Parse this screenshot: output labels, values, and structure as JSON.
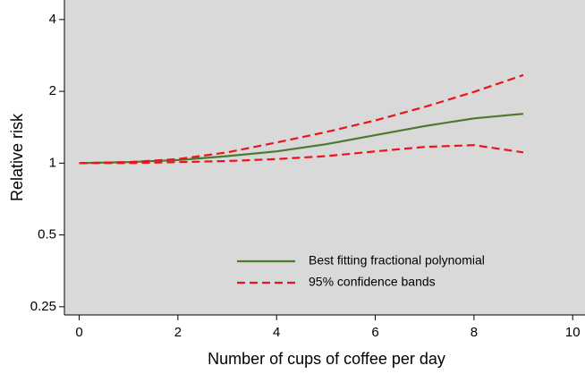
{
  "chart_data": {
    "type": "line",
    "x_label": "Number of cups of coffee per day",
    "y_label": "Relative risk",
    "log_y": true,
    "xlim": [
      -0.3,
      10.25
    ],
    "xticks": [
      0,
      2,
      4,
      6,
      8,
      10
    ],
    "ylim": [
      0.231,
      4.83
    ],
    "yticks": [
      0.25,
      0.5,
      1,
      2,
      4
    ],
    "x": [
      0,
      1,
      2,
      3,
      4,
      5,
      6,
      7,
      8,
      9
    ],
    "series": [
      {
        "name": "Best fitting fractional polynomial",
        "color": "#4a7a2e",
        "dash": false,
        "values": [
          1,
          1.01,
          1.03,
          1.07,
          1.12,
          1.2,
          1.31,
          1.43,
          1.54,
          1.61
        ]
      },
      {
        "name": "95% confidence bands",
        "color": "#e8161c",
        "dash": true,
        "values": [
          1,
          1.01,
          1.04,
          1.11,
          1.22,
          1.35,
          1.51,
          1.72,
          1.99,
          2.34
        ]
      },
      {
        "color": "#e8161c",
        "dash": true,
        "values": [
          1,
          1.0,
          1.01,
          1.02,
          1.04,
          1.07,
          1.12,
          1.17,
          1.19,
          1.11
        ]
      }
    ]
  }
}
